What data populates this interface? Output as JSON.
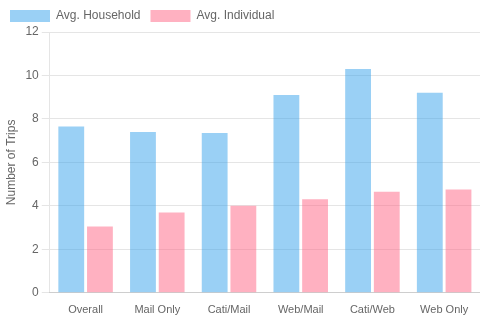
{
  "chart_data": {
    "type": "bar",
    "categories": [
      "Overall",
      "Mail Only",
      "Cati/Mail",
      "Web/Mail",
      "Cati/Web",
      "Web Only"
    ],
    "series": [
      {
        "name": "Avg. Household",
        "values": [
          7.65,
          7.4,
          7.35,
          9.1,
          10.3,
          9.2
        ]
      },
      {
        "name": "Avg. Individual",
        "values": [
          3.05,
          3.7,
          4.0,
          4.3,
          4.65,
          4.75
        ]
      }
    ],
    "ylabel": "Number of Trips",
    "ylim": [
      0,
      12
    ],
    "yticks": [
      0,
      2,
      4,
      6,
      8,
      10,
      12
    ],
    "grid": "y",
    "legend": "upper left"
  }
}
